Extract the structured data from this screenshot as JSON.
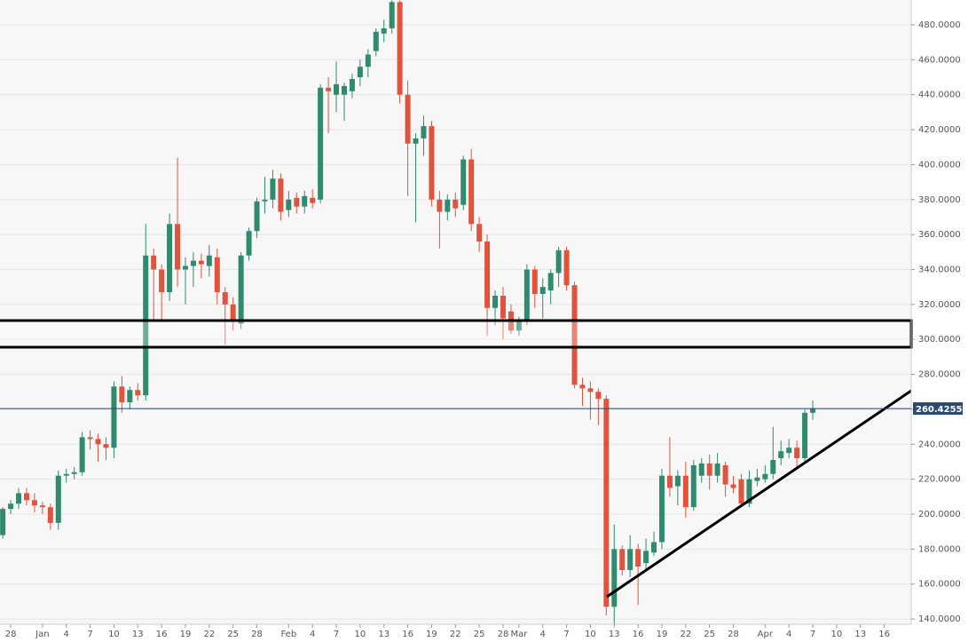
{
  "chart_data": {
    "type": "candlestick",
    "up_color": "#2f8a6e",
    "down_color": "#e0533c",
    "grid": true,
    "last_price": 260.42554,
    "last_price_label": "260.42554",
    "last_price_color": "#2c4a6e",
    "ylim": [
      137,
      494.2
    ],
    "yticks": [
      {
        "value": 140,
        "label": "140.0000"
      },
      {
        "value": 160,
        "label": "160.0000"
      },
      {
        "value": 180,
        "label": "180.0000"
      },
      {
        "value": 200,
        "label": "200.0000"
      },
      {
        "value": 220,
        "label": "220.0000"
      },
      {
        "value": 240,
        "label": "240.0000"
      },
      {
        "value": 260,
        "label": "260.0000"
      },
      {
        "value": 280,
        "label": "280.0000"
      },
      {
        "value": 300,
        "label": "300.0000"
      },
      {
        "value": 320,
        "label": "320.0000"
      },
      {
        "value": 340,
        "label": "340.0000"
      },
      {
        "value": 360,
        "label": "360.0000"
      },
      {
        "value": 380,
        "label": "380.0000"
      },
      {
        "value": 400,
        "label": "400.0000"
      },
      {
        "value": 420,
        "label": "420.0000"
      },
      {
        "value": 440,
        "label": "440.0000"
      },
      {
        "value": 460,
        "label": "460.0000"
      },
      {
        "value": 480,
        "label": "480.0000"
      }
    ],
    "xlim": [
      -1.35,
      113.4
    ],
    "xticks": [
      {
        "value": 0,
        "label": "28"
      },
      {
        "value": 4,
        "label": "Jan"
      },
      {
        "value": 7,
        "label": "4"
      },
      {
        "value": 10,
        "label": "7"
      },
      {
        "value": 13,
        "label": "10"
      },
      {
        "value": 16,
        "label": "13"
      },
      {
        "value": 19,
        "label": "16"
      },
      {
        "value": 22,
        "label": "19"
      },
      {
        "value": 25,
        "label": "22"
      },
      {
        "value": 28,
        "label": "25"
      },
      {
        "value": 31,
        "label": "28"
      },
      {
        "value": 35,
        "label": "Feb"
      },
      {
        "value": 38,
        "label": "4"
      },
      {
        "value": 41,
        "label": "7"
      },
      {
        "value": 44,
        "label": "10"
      },
      {
        "value": 47,
        "label": "13"
      },
      {
        "value": 50,
        "label": "16"
      },
      {
        "value": 53,
        "label": "19"
      },
      {
        "value": 56,
        "label": "22"
      },
      {
        "value": 59,
        "label": "25"
      },
      {
        "value": 62,
        "label": "28"
      },
      {
        "value": 64,
        "label": "Mar"
      },
      {
        "value": 67,
        "label": "4"
      },
      {
        "value": 70,
        "label": "7"
      },
      {
        "value": 73,
        "label": "10"
      },
      {
        "value": 76,
        "label": "13"
      },
      {
        "value": 79,
        "label": "16"
      },
      {
        "value": 82,
        "label": "19"
      },
      {
        "value": 85,
        "label": "22"
      },
      {
        "value": 88,
        "label": "25"
      },
      {
        "value": 91,
        "label": "28"
      },
      {
        "value": 95,
        "label": "Apr"
      },
      {
        "value": 98,
        "label": "4"
      },
      {
        "value": 101,
        "label": "7"
      },
      {
        "value": 104,
        "label": "10"
      },
      {
        "value": 107,
        "label": "13"
      },
      {
        "value": 110,
        "label": "16"
      }
    ],
    "x": [
      -1,
      0,
      1,
      2,
      3,
      4,
      5,
      6,
      7,
      8,
      9,
      10,
      11,
      12,
      13,
      14,
      15,
      16,
      17,
      18,
      19,
      20,
      21,
      22,
      23,
      24,
      25,
      26,
      27,
      28,
      29,
      30,
      31,
      32,
      33,
      34,
      35,
      36,
      37,
      38,
      39,
      40,
      41,
      42,
      43,
      44,
      45,
      46,
      47,
      48,
      49,
      50,
      51,
      52,
      53,
      54,
      55,
      56,
      57,
      58,
      59,
      60,
      61,
      62,
      63,
      64,
      65,
      66,
      67,
      68,
      69,
      70,
      71,
      72,
      73,
      74,
      75,
      76,
      77,
      78,
      79,
      80,
      81,
      82,
      83,
      84,
      85,
      86,
      87,
      88,
      89,
      90,
      91,
      92,
      93,
      94,
      95,
      96,
      97,
      98,
      99,
      100,
      101
    ],
    "ohlc": [
      [
        188,
        204,
        186,
        203
      ],
      [
        203,
        208,
        200,
        206
      ],
      [
        206,
        215,
        203,
        212
      ],
      [
        212,
        215,
        205,
        208
      ],
      [
        208,
        212,
        201,
        205
      ],
      [
        205,
        207,
        200,
        204
      ],
      [
        204,
        206,
        191,
        195
      ],
      [
        195,
        225,
        191,
        222
      ],
      [
        222,
        226,
        218,
        223
      ],
      [
        223,
        227,
        220,
        224
      ],
      [
        224,
        247,
        222,
        244
      ],
      [
        244,
        248,
        237,
        243
      ],
      [
        243,
        246,
        230,
        240
      ],
      [
        240,
        244,
        231,
        238
      ],
      [
        238,
        276,
        232,
        273
      ],
      [
        273,
        279,
        258,
        264
      ],
      [
        264,
        273,
        260,
        271
      ],
      [
        271,
        275,
        265,
        268
      ],
      [
        268,
        366,
        265,
        348
      ],
      [
        348,
        352,
        310,
        340
      ],
      [
        340,
        343,
        310,
        327
      ],
      [
        327,
        372,
        322,
        366
      ],
      [
        366,
        404,
        330,
        340
      ],
      [
        340,
        347,
        320,
        342
      ],
      [
        342,
        350,
        330,
        345
      ],
      [
        345,
        349,
        335,
        343
      ],
      [
        342,
        354,
        336,
        348
      ],
      [
        347,
        352,
        320,
        327
      ],
      [
        327,
        330,
        297,
        320
      ],
      [
        320,
        324,
        305,
        311
      ],
      [
        309,
        350,
        306,
        348
      ],
      [
        348,
        364,
        345,
        362
      ],
      [
        362,
        381,
        358,
        379
      ],
      [
        379,
        393,
        372,
        380
      ],
      [
        380,
        397,
        375,
        392
      ],
      [
        392,
        395,
        368,
        373
      ],
      [
        374,
        385,
        370,
        380
      ],
      [
        381,
        384,
        372,
        376
      ],
      [
        376,
        385,
        372,
        382
      ],
      [
        381,
        386,
        375,
        378
      ],
      [
        380,
        446,
        378,
        444
      ],
      [
        444,
        450,
        418,
        442
      ],
      [
        440,
        459,
        430,
        446
      ],
      [
        440,
        447,
        425,
        445
      ],
      [
        442,
        452,
        438,
        449
      ],
      [
        450,
        460,
        445,
        456
      ],
      [
        456,
        466,
        450,
        463
      ],
      [
        465,
        478,
        462,
        476
      ],
      [
        475,
        483,
        470,
        478
      ],
      [
        478,
        494,
        475,
        493
      ],
      [
        493,
        494,
        435,
        440
      ],
      [
        440,
        448,
        382,
        412
      ],
      [
        412,
        418,
        367,
        415
      ],
      [
        415,
        428,
        405,
        422
      ],
      [
        422,
        425,
        376,
        380
      ],
      [
        380,
        385,
        352,
        373
      ],
      [
        373,
        383,
        368,
        380
      ],
      [
        380,
        384,
        370,
        375
      ],
      [
        377,
        405,
        374,
        403
      ],
      [
        403,
        409,
        362,
        366
      ],
      [
        366,
        370,
        350,
        356
      ],
      [
        356,
        360,
        302,
        318
      ],
      [
        318,
        328,
        308,
        325
      ],
      [
        325,
        330,
        300,
        312
      ],
      [
        316,
        320,
        303,
        305
      ],
      [
        305,
        313,
        302,
        310
      ],
      [
        310,
        343,
        308,
        340
      ],
      [
        340,
        342,
        318,
        326
      ],
      [
        326,
        335,
        312,
        330
      ],
      [
        328,
        340,
        320,
        338
      ],
      [
        338,
        353,
        330,
        351
      ],
      [
        351,
        353,
        328,
        331
      ],
      [
        331,
        333,
        272,
        274
      ],
      [
        274,
        278,
        262,
        272
      ],
      [
        272,
        276,
        254,
        270
      ],
      [
        270,
        272,
        251,
        266
      ],
      [
        266,
        268,
        142,
        147
      ],
      [
        147,
        194,
        137,
        180
      ],
      [
        180,
        182,
        165,
        168
      ],
      [
        168,
        188,
        164,
        180
      ],
      [
        180,
        183,
        148,
        170
      ],
      [
        172,
        186,
        168,
        179
      ],
      [
        178,
        190,
        176,
        184
      ],
      [
        184,
        226,
        180,
        222
      ],
      [
        222,
        244,
        210,
        215
      ],
      [
        216,
        225,
        205,
        222
      ],
      [
        222,
        230,
        198,
        204
      ],
      [
        204,
        231,
        202,
        228
      ],
      [
        222,
        232,
        218,
        229
      ],
      [
        229,
        234,
        214,
        222
      ],
      [
        222,
        235,
        218,
        229
      ],
      [
        228,
        230,
        210,
        217
      ],
      [
        217,
        222,
        212,
        215
      ],
      [
        220,
        223,
        204,
        206
      ],
      [
        206,
        225,
        204,
        220
      ],
      [
        219,
        226,
        216,
        221
      ],
      [
        220,
        228,
        218,
        223
      ],
      [
        223,
        250,
        220,
        231
      ],
      [
        232,
        242,
        228,
        236
      ],
      [
        235,
        243,
        232,
        238
      ],
      [
        238,
        242,
        226,
        232
      ],
      [
        232,
        260,
        230,
        258
      ],
      [
        258,
        265,
        254,
        260.42554
      ]
    ]
  }
}
